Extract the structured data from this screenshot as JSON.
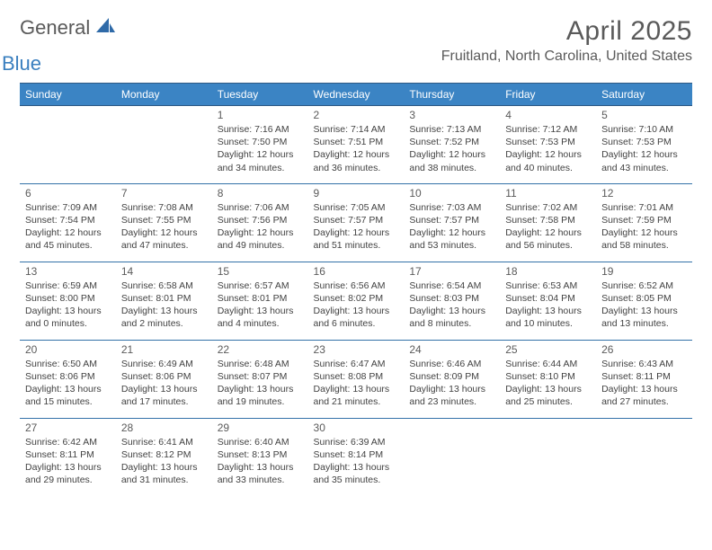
{
  "brand": {
    "text1": "General",
    "text2": "Blue",
    "accent": "#2f6aa8"
  },
  "title": "April 2025",
  "location": "Fruitland, North Carolina, United States",
  "dayHeaders": [
    "Sunday",
    "Monday",
    "Tuesday",
    "Wednesday",
    "Thursday",
    "Friday",
    "Saturday"
  ],
  "colors": {
    "headerBg": "#3b84c4",
    "headerBorder": "#2f5a84",
    "rowRule": "#3372a8",
    "bodyText": "#424242",
    "mutedText": "#5a5a5a"
  },
  "weeks": [
    [
      null,
      null,
      {
        "n": "1",
        "sr": "7:16 AM",
        "ss": "7:50 PM",
        "dl": "12 hours and 34 minutes."
      },
      {
        "n": "2",
        "sr": "7:14 AM",
        "ss": "7:51 PM",
        "dl": "12 hours and 36 minutes."
      },
      {
        "n": "3",
        "sr": "7:13 AM",
        "ss": "7:52 PM",
        "dl": "12 hours and 38 minutes."
      },
      {
        "n": "4",
        "sr": "7:12 AM",
        "ss": "7:53 PM",
        "dl": "12 hours and 40 minutes."
      },
      {
        "n": "5",
        "sr": "7:10 AM",
        "ss": "7:53 PM",
        "dl": "12 hours and 43 minutes."
      }
    ],
    [
      {
        "n": "6",
        "sr": "7:09 AM",
        "ss": "7:54 PM",
        "dl": "12 hours and 45 minutes."
      },
      {
        "n": "7",
        "sr": "7:08 AM",
        "ss": "7:55 PM",
        "dl": "12 hours and 47 minutes."
      },
      {
        "n": "8",
        "sr": "7:06 AM",
        "ss": "7:56 PM",
        "dl": "12 hours and 49 minutes."
      },
      {
        "n": "9",
        "sr": "7:05 AM",
        "ss": "7:57 PM",
        "dl": "12 hours and 51 minutes."
      },
      {
        "n": "10",
        "sr": "7:03 AM",
        "ss": "7:57 PM",
        "dl": "12 hours and 53 minutes."
      },
      {
        "n": "11",
        "sr": "7:02 AM",
        "ss": "7:58 PM",
        "dl": "12 hours and 56 minutes."
      },
      {
        "n": "12",
        "sr": "7:01 AM",
        "ss": "7:59 PM",
        "dl": "12 hours and 58 minutes."
      }
    ],
    [
      {
        "n": "13",
        "sr": "6:59 AM",
        "ss": "8:00 PM",
        "dl": "13 hours and 0 minutes."
      },
      {
        "n": "14",
        "sr": "6:58 AM",
        "ss": "8:01 PM",
        "dl": "13 hours and 2 minutes."
      },
      {
        "n": "15",
        "sr": "6:57 AM",
        "ss": "8:01 PM",
        "dl": "13 hours and 4 minutes."
      },
      {
        "n": "16",
        "sr": "6:56 AM",
        "ss": "8:02 PM",
        "dl": "13 hours and 6 minutes."
      },
      {
        "n": "17",
        "sr": "6:54 AM",
        "ss": "8:03 PM",
        "dl": "13 hours and 8 minutes."
      },
      {
        "n": "18",
        "sr": "6:53 AM",
        "ss": "8:04 PM",
        "dl": "13 hours and 10 minutes."
      },
      {
        "n": "19",
        "sr": "6:52 AM",
        "ss": "8:05 PM",
        "dl": "13 hours and 13 minutes."
      }
    ],
    [
      {
        "n": "20",
        "sr": "6:50 AM",
        "ss": "8:06 PM",
        "dl": "13 hours and 15 minutes."
      },
      {
        "n": "21",
        "sr": "6:49 AM",
        "ss": "8:06 PM",
        "dl": "13 hours and 17 minutes."
      },
      {
        "n": "22",
        "sr": "6:48 AM",
        "ss": "8:07 PM",
        "dl": "13 hours and 19 minutes."
      },
      {
        "n": "23",
        "sr": "6:47 AM",
        "ss": "8:08 PM",
        "dl": "13 hours and 21 minutes."
      },
      {
        "n": "24",
        "sr": "6:46 AM",
        "ss": "8:09 PM",
        "dl": "13 hours and 23 minutes."
      },
      {
        "n": "25",
        "sr": "6:44 AM",
        "ss": "8:10 PM",
        "dl": "13 hours and 25 minutes."
      },
      {
        "n": "26",
        "sr": "6:43 AM",
        "ss": "8:11 PM",
        "dl": "13 hours and 27 minutes."
      }
    ],
    [
      {
        "n": "27",
        "sr": "6:42 AM",
        "ss": "8:11 PM",
        "dl": "13 hours and 29 minutes."
      },
      {
        "n": "28",
        "sr": "6:41 AM",
        "ss": "8:12 PM",
        "dl": "13 hours and 31 minutes."
      },
      {
        "n": "29",
        "sr": "6:40 AM",
        "ss": "8:13 PM",
        "dl": "13 hours and 33 minutes."
      },
      {
        "n": "30",
        "sr": "6:39 AM",
        "ss": "8:14 PM",
        "dl": "13 hours and 35 minutes."
      },
      null,
      null,
      null
    ]
  ],
  "labels": {
    "sunrise": "Sunrise:",
    "sunset": "Sunset:",
    "daylight": "Daylight:"
  }
}
